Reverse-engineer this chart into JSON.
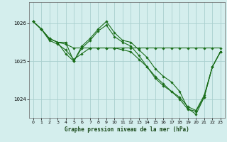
{
  "title": "Graphe pression niveau de la mer (hPa)",
  "bg_color": "#d4eeed",
  "grid_color": "#aacfcf",
  "line_color": "#1a6e1a",
  "marker_color": "#1a6e1a",
  "xlim": [
    -0.5,
    23.5
  ],
  "ylim": [
    1023.5,
    1026.55
  ],
  "yticks": [
    1024,
    1025,
    1026
  ],
  "xticks": [
    0,
    1,
    2,
    3,
    4,
    5,
    6,
    7,
    8,
    9,
    10,
    11,
    12,
    13,
    14,
    15,
    16,
    17,
    18,
    19,
    20,
    21,
    22,
    23
  ],
  "series": [
    {
      "x": [
        0,
        1,
        2,
        3,
        4,
        5,
        6,
        7,
        8,
        9,
        10,
        11,
        12,
        13,
        14,
        15,
        16,
        17,
        18,
        19,
        20,
        21,
        22,
        23
      ],
      "y": [
        1026.05,
        1025.85,
        1025.6,
        1025.5,
        1025.45,
        1025.35,
        1025.35,
        1025.35,
        1025.35,
        1025.35,
        1025.35,
        1025.35,
        1025.35,
        1025.35,
        1025.35,
        1025.35,
        1025.35,
        1025.35,
        1025.35,
        1025.35,
        1025.35,
        1025.35,
        1025.35,
        1025.35
      ]
    },
    {
      "x": [
        0,
        1,
        2,
        3,
        4,
        5,
        6,
        7,
        8,
        9,
        10,
        11,
        12,
        13,
        14,
        15,
        16,
        17,
        18,
        19,
        20,
        21,
        22,
        23
      ],
      "y": [
        1026.05,
        1025.85,
        1025.6,
        1025.5,
        1025.5,
        1025.0,
        1025.4,
        1025.6,
        1025.85,
        1026.05,
        1025.75,
        1025.55,
        1025.5,
        1025.3,
        1025.1,
        1024.8,
        1024.6,
        1024.45,
        1024.2,
        1023.75,
        1023.6,
        1024.05,
        1024.85,
        1025.25
      ]
    },
    {
      "x": [
        0,
        1,
        2,
        3,
        4,
        5,
        6,
        7,
        8,
        9,
        10,
        11,
        12,
        13,
        14,
        15,
        16,
        17,
        18,
        19,
        20,
        21,
        22,
        23
      ],
      "y": [
        1026.05,
        1025.85,
        1025.6,
        1025.5,
        1025.2,
        1025.0,
        1025.35,
        1025.55,
        1025.8,
        1025.95,
        1025.65,
        1025.5,
        1025.4,
        1025.15,
        1024.85,
        1024.6,
        1024.4,
        1024.2,
        1024.05,
        1023.8,
        1023.7,
        1024.1,
        1024.85,
        1025.25
      ]
    },
    {
      "x": [
        0,
        1,
        2,
        3,
        4,
        5,
        6,
        7,
        8,
        9,
        10,
        11,
        12,
        13,
        14,
        15,
        16,
        17,
        18,
        19,
        20,
        21,
        22,
        23
      ],
      "y": [
        1026.05,
        1025.85,
        1025.55,
        1025.45,
        1025.3,
        1025.05,
        1025.2,
        1025.35,
        1025.35,
        1025.35,
        1025.35,
        1025.3,
        1025.25,
        1025.05,
        1024.85,
        1024.55,
        1024.35,
        1024.2,
        1024.0,
        1023.73,
        1023.68,
        1024.05,
        1024.85,
        1025.25
      ]
    }
  ]
}
